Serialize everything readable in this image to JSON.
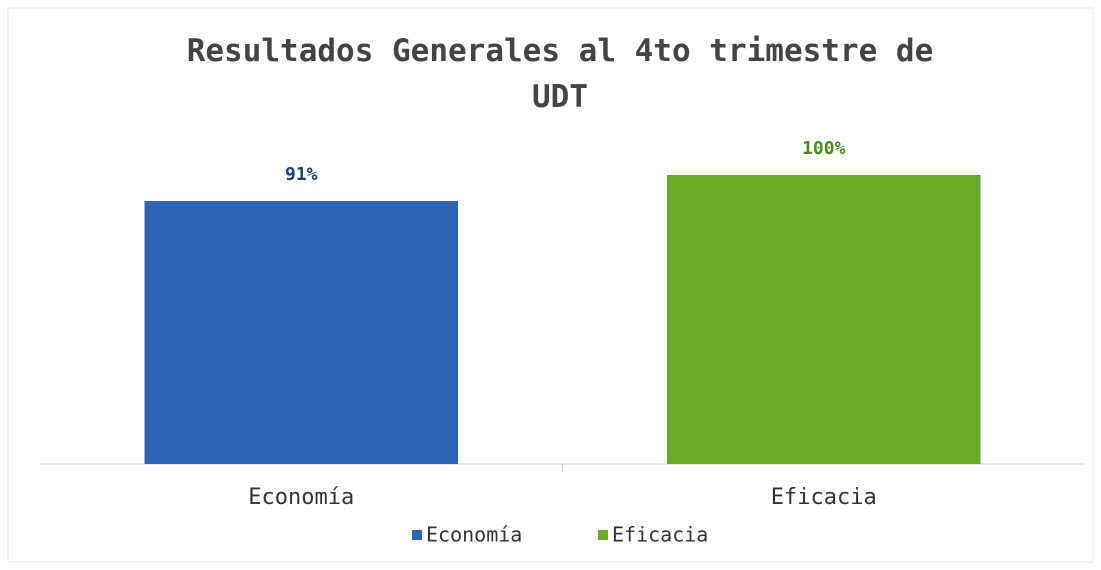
{
  "chart_data": {
    "type": "bar",
    "title": "Resultados Generales al 4to trimestre de UDT",
    "categories": [
      "Economía",
      "Eficacia"
    ],
    "values": [
      91,
      100
    ],
    "value_labels": [
      "91%",
      "100%"
    ],
    "colors": [
      "#2e64b4",
      "#6aaa2a"
    ],
    "label_colors": [
      "#1f3f73",
      "#4e8a1c"
    ],
    "legend": true
  }
}
